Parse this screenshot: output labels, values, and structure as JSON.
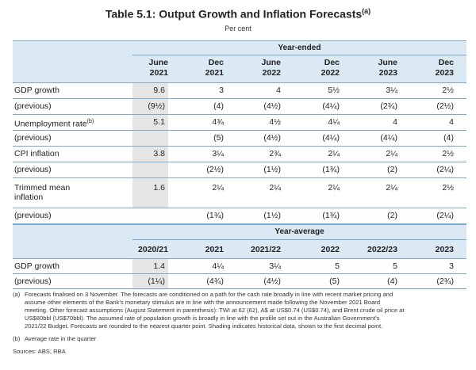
{
  "title": "Table 5.1: Output Growth and Inflation Forecasts",
  "title_note": "(a)",
  "subtitle": "Per cent",
  "year_ended": {
    "label": "Year-ended",
    "columns": [
      [
        "June",
        "2021"
      ],
      [
        "Dec",
        "2021"
      ],
      [
        "June",
        "2022"
      ],
      [
        "Dec",
        "2022"
      ],
      [
        "June",
        "2023"
      ],
      [
        "Dec",
        "2023"
      ]
    ],
    "rows": [
      {
        "label": "GDP growth",
        "values": [
          "9.6",
          "3",
          "4",
          "5½",
          "3¼",
          "2½"
        ]
      },
      {
        "label": "(previous)",
        "values": [
          "(9½)",
          "(4)",
          "(4½)",
          "(4¼)",
          "(2¾)",
          "(2½)"
        ]
      },
      {
        "label": "Unemployment rate",
        "note": "(b)",
        "values": [
          "5.1",
          "4¾",
          "4½",
          "4¼",
          "4",
          "4"
        ]
      },
      {
        "label": "(previous)",
        "values": [
          "",
          "(5)",
          "(4½)",
          "(4¼)",
          "(4¼)",
          "(4)"
        ]
      },
      {
        "label": "CPI inflation",
        "values": [
          "3.8",
          "3¼",
          "2¾",
          "2¼",
          "2¼",
          "2½"
        ]
      },
      {
        "label": "(previous)",
        "values": [
          "",
          "(2½)",
          "(1½)",
          "(1¾)",
          "(2)",
          "(2¼)"
        ]
      },
      {
        "label": [
          "Trimmed mean",
          "inflation"
        ],
        "values": [
          "1.6",
          "2¼",
          "2¼",
          "2¼",
          "2¼",
          "2½"
        ]
      },
      {
        "label": "(previous)",
        "values": [
          "",
          "(1¾)",
          "(1½)",
          "(1¾)",
          "(2)",
          "(2¼)"
        ]
      }
    ]
  },
  "year_average": {
    "label": "Year-average",
    "columns": [
      "2020/21",
      "2021",
      "2021/22",
      "2022",
      "2022/23",
      "2023"
    ],
    "rows": [
      {
        "label": "GDP growth",
        "values": [
          "1.4",
          "4¼",
          "3¼",
          "5",
          "5",
          "3"
        ]
      },
      {
        "label": "(previous)",
        "values": [
          "(1¼)",
          "(4¾)",
          "(4½)",
          "(5)",
          "(4)",
          "(2¾)"
        ]
      }
    ]
  },
  "notes": [
    {
      "mark": "(a)",
      "lines": [
        "Forecasts finalised on 3 November. The forecasts are conditioned on a path for the cash rate broadly in line with recent market pricing and",
        "assume other elements of the Bank's monetary stimulus are in line with the announcement made following the November 2021 Board",
        "meeting. Other forecast assumptions (August Statement in parenthesis): TWI at 62 (62), A$ at US$0.74 (US$0.74), and Brent crude oil price at",
        "US$80bbl (US$70bbl). The assumed rate of population growth is broadly in line with the profile set out in the Australian Government's",
        "2021/22 Budget. Forecasts are rounded to the nearest quarter point. Shading indicates historical data, shown to the first decimal point."
      ]
    },
    {
      "mark": "(b)",
      "lines": [
        "Average rate in the quarter"
      ]
    }
  ],
  "sources": "Sources: ABS; RBA"
}
